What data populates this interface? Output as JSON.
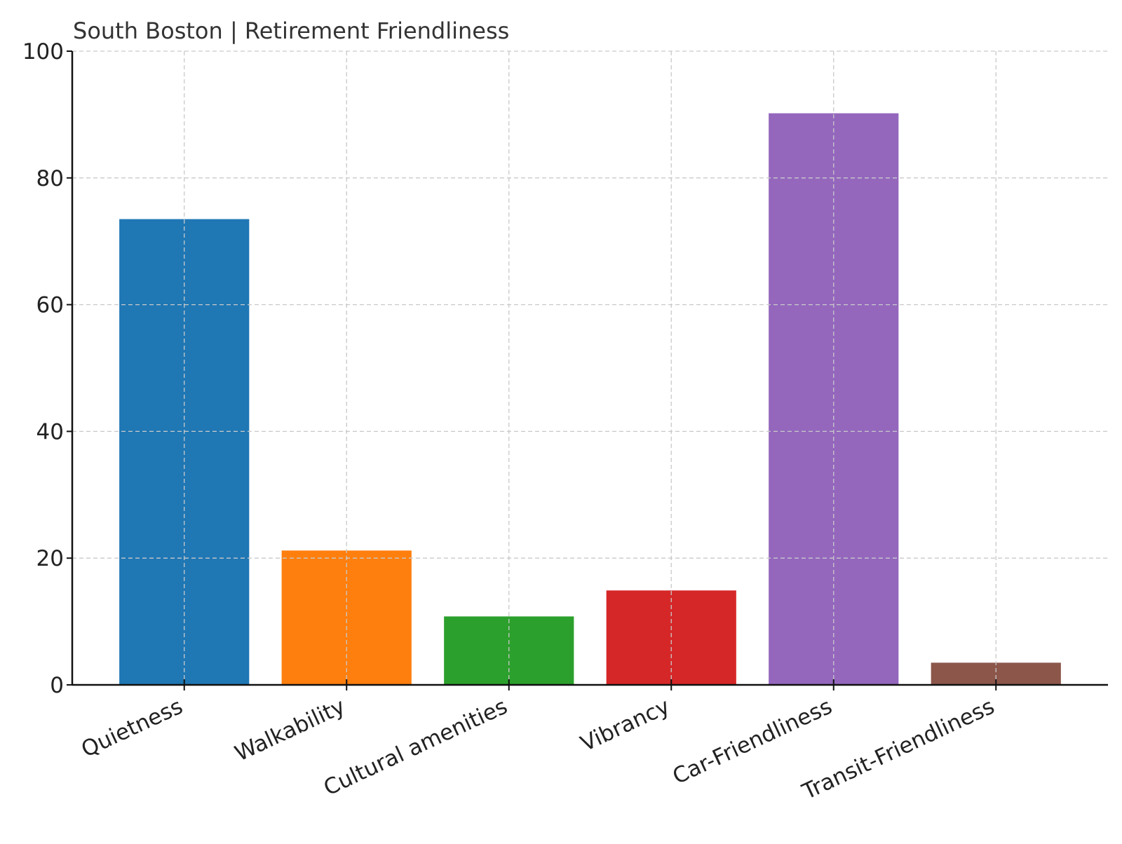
{
  "chart_data": {
    "type": "bar",
    "title": "South Boston | Retirement Friendliness",
    "xlabel": "",
    "ylabel": "",
    "categories": [
      "Quietness",
      "Walkability",
      "Cultural amenities",
      "Vibrancy",
      "Car-Friendliness",
      "Transit-Friendliness"
    ],
    "values": [
      73.5,
      21.2,
      10.8,
      14.9,
      90.2,
      3.5
    ],
    "colors": [
      "#1f77b4",
      "#ff7f0e",
      "#2ca02c",
      "#d62728",
      "#9467bd",
      "#8c564b"
    ],
    "ylim": [
      0,
      100
    ],
    "yticks": [
      0,
      20,
      40,
      60,
      80,
      100
    ],
    "grid": true,
    "legend": "none"
  }
}
